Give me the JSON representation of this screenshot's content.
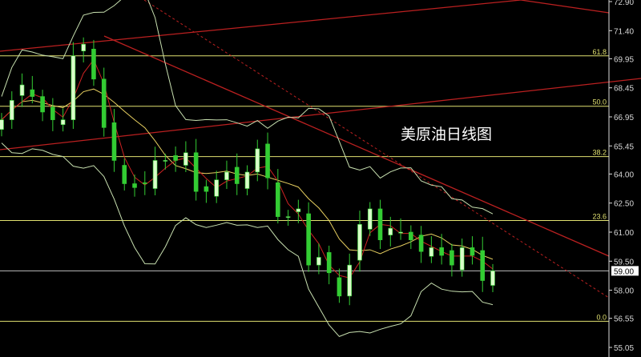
{
  "chart_data": {
    "type": "candlestick",
    "title": "美原油日线图",
    "ylim": [
      55.05,
      72.9
    ],
    "y_ticks": [
      "72.90",
      "71.40",
      "69.95",
      "68.45",
      "66.95",
      "65.45",
      "64.00",
      "62.50",
      "61.00",
      "59.50",
      "58.00",
      "56.55",
      "55.05"
    ],
    "current_price": "59.00",
    "fib_levels": [
      {
        "label": "61.8",
        "price": 70.1
      },
      {
        "label": "50.0",
        "price": 67.5
      },
      {
        "label": "38.2",
        "price": 64.9
      },
      {
        "label": "23.6",
        "price": 61.6
      },
      {
        "label": "0.0",
        "price": 56.4
      }
    ],
    "closes": [
      66.8,
      67.8,
      68.6,
      68.0,
      67.2,
      66.8,
      66.8,
      70.1,
      70.7,
      68.9,
      66.4,
      64.7,
      63.5,
      63.3,
      63.5,
      64.7,
      64.7,
      64.7,
      65.1,
      63.1,
      63.1,
      63.7,
      64.1,
      63.5,
      64.1,
      65.3,
      63.8,
      61.8,
      61.8,
      62.2,
      59.3,
      59.7,
      58.9,
      57.7,
      59.3,
      61.4,
      62.2,
      60.6,
      61.2,
      61.0,
      60.6,
      60.0,
      60.2,
      59.8,
      59.3,
      60.2,
      59.8,
      58.5,
      59.0
    ],
    "colors": {
      "background": "#000000",
      "up": "#d8ffc8",
      "down": "#33cc33",
      "trend": "#cc2222",
      "fib": "#e0e070",
      "band": "#c8e0b0",
      "ma": "#e8d060"
    }
  }
}
